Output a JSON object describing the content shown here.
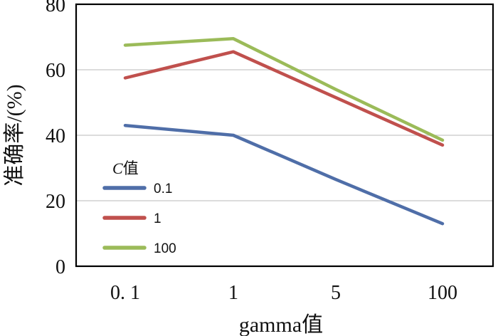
{
  "chart_data": {
    "type": "line",
    "title": "",
    "xlabel": "gamma值",
    "ylabel": "准确率/(%)",
    "categories": [
      "0. 1",
      "1",
      "5",
      "100"
    ],
    "ylim": [
      0,
      80
    ],
    "yticks": [
      "0",
      "20",
      "40",
      "60",
      "80"
    ],
    "yticks_values": [
      0,
      20,
      40,
      60,
      80
    ],
    "grid": true,
    "legend": {
      "title_italic": "C",
      "title_rest": "值",
      "placement": "left-bottom"
    },
    "series": [
      {
        "name": "0.1",
        "color": "#4f6ea8",
        "values": [
          43,
          40,
          26.5,
          13
        ]
      },
      {
        "name": "1",
        "color": "#c0504d",
        "values": [
          57.5,
          65.5,
          51.5,
          37
        ]
      },
      {
        "name": "100",
        "color": "#9bbb59",
        "values": [
          67.5,
          69.5,
          54,
          38.5
        ]
      }
    ]
  }
}
